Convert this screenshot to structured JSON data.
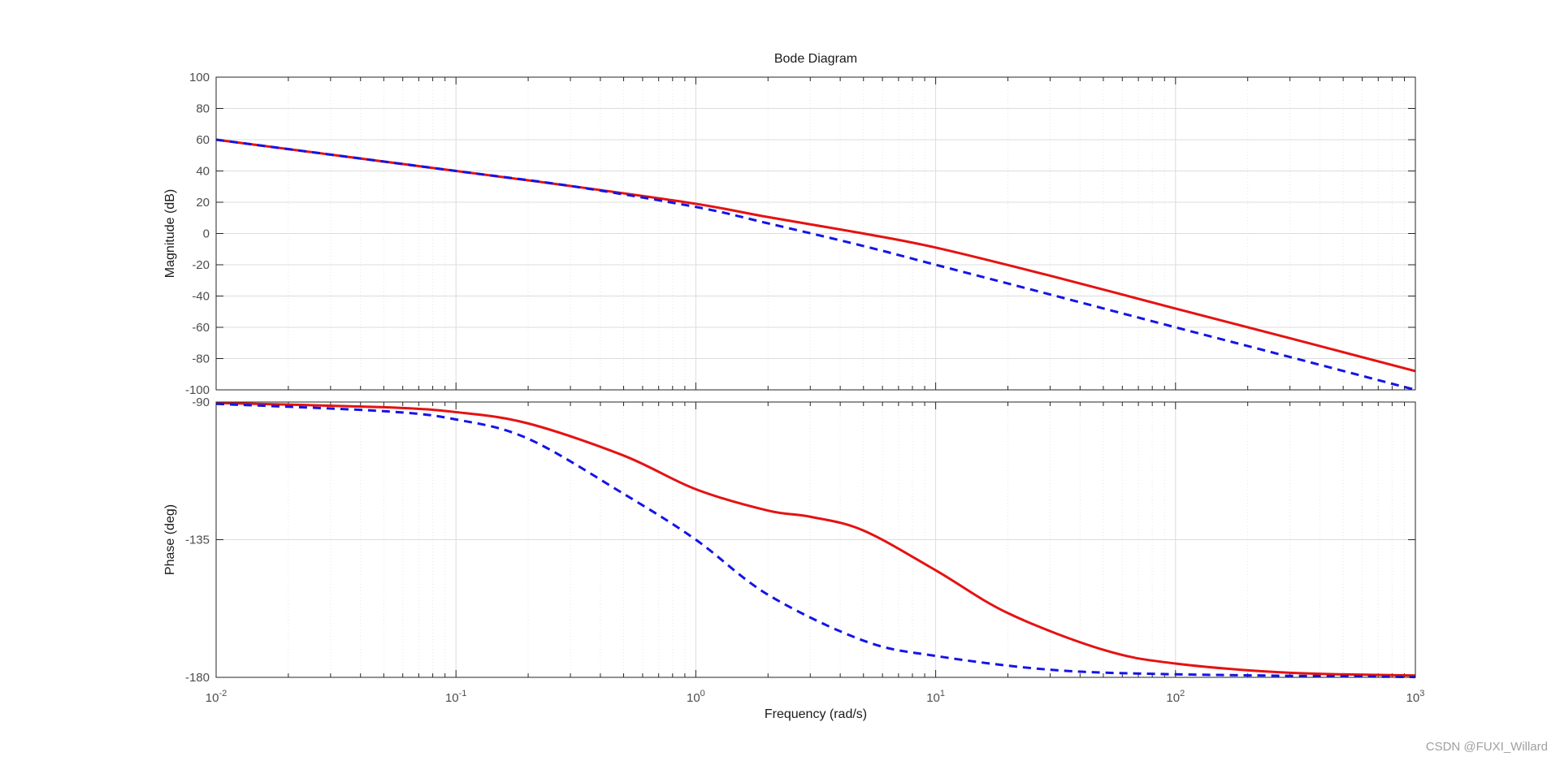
{
  "chart_data": {
    "type": "line",
    "title": "Bode Diagram",
    "xlabel": "Frequency  (rad/s)",
    "xscale": "log",
    "xlim": [
      0.01,
      1000
    ],
    "x_ticks": [
      {
        "base": "10",
        "exp": "-2"
      },
      {
        "base": "10",
        "exp": "-1"
      },
      {
        "base": "10",
        "exp": "0"
      },
      {
        "base": "10",
        "exp": "1"
      },
      {
        "base": "10",
        "exp": "2"
      },
      {
        "base": "10",
        "exp": "3"
      }
    ],
    "grid": true,
    "series_colors": [
      "#e51212",
      "#1414e6"
    ],
    "series_styles": [
      "solid",
      "dashed"
    ],
    "panels": [
      {
        "ylabel": "Magnitude (dB)",
        "ylim": [
          -100,
          100
        ],
        "y_ticks": [
          "100",
          "80",
          "60",
          "40",
          "20",
          "0",
          "-20",
          "-40",
          "-60",
          "-80",
          "-100"
        ],
        "series": [
          {
            "values": [
              {
                "x": 0.01,
                "y": 60
              },
              {
                "x": 0.1,
                "y": 40
              },
              {
                "x": 0.3,
                "y": 30.4
              },
              {
                "x": 1,
                "y": 19
              },
              {
                "x": 2,
                "y": 10.5
              },
              {
                "x": 5,
                "y": 0
              },
              {
                "x": 10,
                "y": -9
              },
              {
                "x": 30,
                "y": -27
              },
              {
                "x": 100,
                "y": -48
              },
              {
                "x": 300,
                "y": -67
              },
              {
                "x": 1000,
                "y": -88
              }
            ]
          },
          {
            "values": [
              {
                "x": 0.01,
                "y": 60
              },
              {
                "x": 0.1,
                "y": 40
              },
              {
                "x": 0.3,
                "y": 30.4
              },
              {
                "x": 1,
                "y": 17
              },
              {
                "x": 2,
                "y": 6.5
              },
              {
                "x": 5,
                "y": -8
              },
              {
                "x": 10,
                "y": -20
              },
              {
                "x": 30,
                "y": -39
              },
              {
                "x": 100,
                "y": -60
              },
              {
                "x": 300,
                "y": -79
              },
              {
                "x": 1000,
                "y": -100
              }
            ]
          }
        ]
      },
      {
        "ylabel": "Phase (deg)",
        "ylim": [
          -180,
          -90
        ],
        "y_ticks": [
          "-90",
          "-135",
          "-180"
        ],
        "series": [
          {
            "values": [
              {
                "x": 0.01,
                "y": -90.3
              },
              {
                "x": 0.05,
                "y": -91.7
              },
              {
                "x": 0.1,
                "y": -93.3
              },
              {
                "x": 0.2,
                "y": -97
              },
              {
                "x": 0.5,
                "y": -107.5
              },
              {
                "x": 1,
                "y": -118.5
              },
              {
                "x": 2,
                "y": -125.5
              },
              {
                "x": 3,
                "y": -127.5
              },
              {
                "x": 5,
                "y": -132
              },
              {
                "x": 10,
                "y": -145
              },
              {
                "x": 20,
                "y": -159
              },
              {
                "x": 50,
                "y": -171
              },
              {
                "x": 100,
                "y": -175.5
              },
              {
                "x": 300,
                "y": -178.5
              },
              {
                "x": 1000,
                "y": -179.4
              }
            ]
          },
          {
            "values": [
              {
                "x": 0.01,
                "y": -90.6
              },
              {
                "x": 0.05,
                "y": -93
              },
              {
                "x": 0.1,
                "y": -95.7
              },
              {
                "x": 0.2,
                "y": -102
              },
              {
                "x": 0.5,
                "y": -120
              },
              {
                "x": 1,
                "y": -135
              },
              {
                "x": 2,
                "y": -153
              },
              {
                "x": 5,
                "y": -168
              },
              {
                "x": 10,
                "y": -173
              },
              {
                "x": 30,
                "y": -177.5
              },
              {
                "x": 100,
                "y": -179
              },
              {
                "x": 1000,
                "y": -179.9
              }
            ]
          }
        ]
      }
    ]
  },
  "watermark": "CSDN @FUXI_Willard"
}
